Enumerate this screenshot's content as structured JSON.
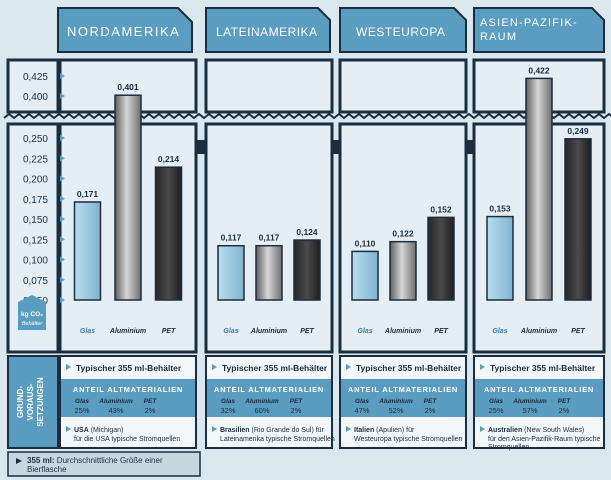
{
  "regions": [
    {
      "name": "NORDAMERIKA"
    },
    {
      "name": "LATEINAMERIKA"
    },
    {
      "name": "WESTEUROPA"
    },
    {
      "name": "ASIEN-PAZIFIK-RAUM"
    }
  ],
  "axis": {
    "upper_ticks": [
      "0,425",
      "0,400"
    ],
    "lower_ticks": [
      "0,250",
      "0,225",
      "0,200",
      "0,175",
      "0,150",
      "0,125",
      "0,100",
      "0,075",
      "0,050"
    ],
    "unit_line1": "kg CO₂",
    "unit_line2": "Behälter"
  },
  "chart_data": {
    "type": "bar",
    "categories": [
      "Glas",
      "Aluminium",
      "PET"
    ],
    "series": [
      {
        "name": "NORDAMERIKA",
        "values": [
          0.171,
          0.401,
          0.214
        ],
        "labels": [
          "0,171",
          "0,401",
          "0,214"
        ]
      },
      {
        "name": "LATEINAMERIKA",
        "values": [
          0.117,
          0.117,
          0.124
        ],
        "labels": [
          "0,117",
          "0,117",
          "0,124"
        ]
      },
      {
        "name": "WESTEUROPA",
        "values": [
          0.11,
          0.122,
          0.152
        ],
        "labels": [
          "0,110",
          "0,122",
          "0,152"
        ]
      },
      {
        "name": "ASIEN-PAZIFIK-RAUM",
        "values": [
          0.153,
          0.422,
          0.249
        ],
        "labels": [
          "0,153",
          "0,422",
          "0,249"
        ]
      }
    ],
    "axis_break": [
      0.25,
      0.4
    ],
    "ylim": [
      0.05,
      0.425
    ],
    "ylabel": "kg CO₂ / Behälter",
    "colors": {
      "Glas": "#9cc8e0",
      "Aluminium": "#8d8d8d",
      "PET": "#2f2f2f"
    }
  },
  "assumptions": {
    "side_label_lines": [
      "GRUND-",
      "VORAUS-",
      "SETZUNGEN"
    ],
    "container_label": "Typischer 355 ml-Behälter",
    "recycled_heading": "ANTEIL ALTMATERIALIEN",
    "material_labels": [
      "Glas",
      "Aluminium",
      "PET"
    ],
    "regions": [
      {
        "recycled": [
          "25%",
          "43%",
          "2%"
        ],
        "source_bold": "USA",
        "source_rest": " (Michigan)",
        "source_line2": "für die USA typische Stromquellen"
      },
      {
        "recycled": [
          "32%",
          "60%",
          "2%"
        ],
        "source_bold": "Brasilien",
        "source_rest": " (Rio Grande do Sul) für",
        "source_line2": "Lateinamerika typische Stromquellen"
      },
      {
        "recycled": [
          "47%",
          "52%",
          "2%"
        ],
        "source_bold": "Italien",
        "source_rest": " (Apulien) für",
        "source_line2": "Westeuropa typische Stromquellen"
      },
      {
        "recycled": [
          "25%",
          "57%",
          "2%"
        ],
        "source_bold": "Australien",
        "source_rest": " (New South Wales)",
        "source_line2": "für den Asien-Pazifik-Raum typische",
        "source_line3": "Stromquellen"
      }
    ]
  },
  "footnote": {
    "bold": "355 ml:",
    "rest": " Durchschnittliche Größe einer",
    "line2": "Bierflasche"
  },
  "palette": {
    "navy": "#1c2d3f",
    "header_blue": "#5b9dc0",
    "panel_bg": "#e4eef4",
    "teal_band": "#5a9cc0"
  }
}
